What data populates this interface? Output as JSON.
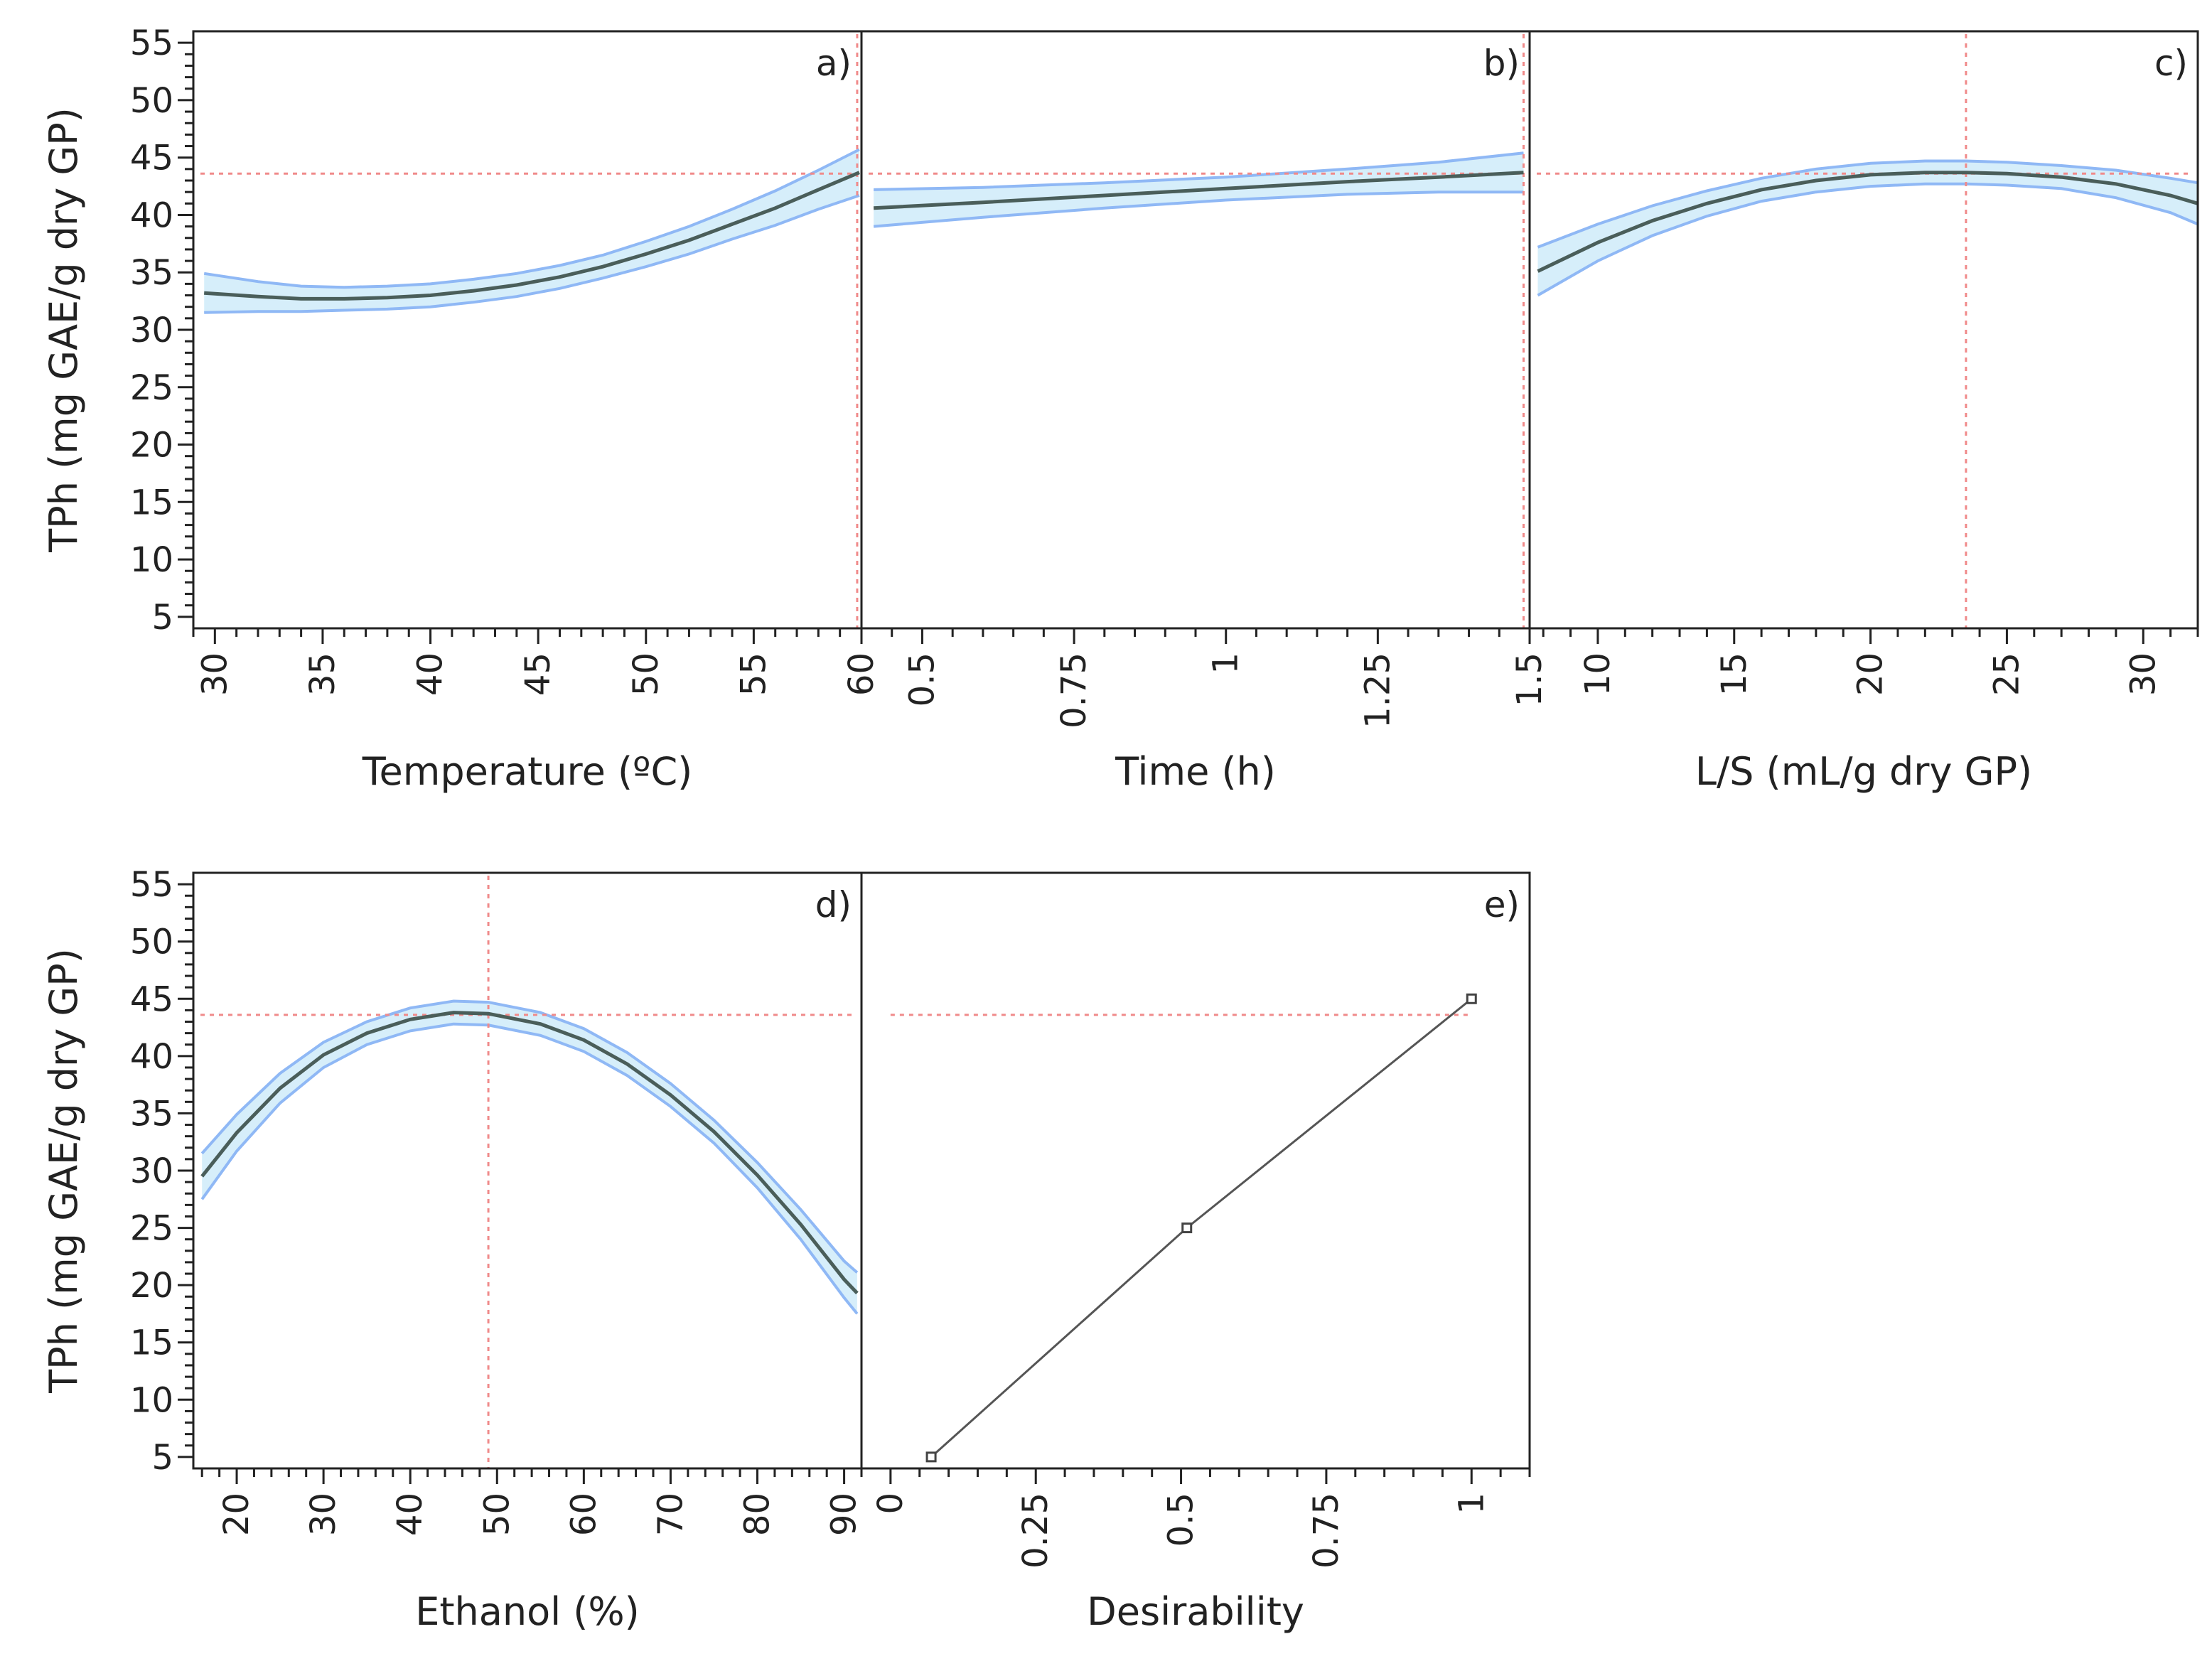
{
  "colors": {
    "curve": "#4a5e5a",
    "band_fill": "#d6eefa",
    "band_edge": "#8fb8f5",
    "ref_line": "#f08a8a",
    "frame": "#222222",
    "tick_label": "#222222"
  },
  "chart_data": [
    {
      "type": "line",
      "panel": "a)",
      "xlabel": "Temperature (ºC)",
      "ylabel": "TPh (mg GAE/g dry GP)",
      "xlim": [
        29,
        60
      ],
      "ylim": [
        4,
        56
      ],
      "xticks": [
        30,
        35,
        40,
        45,
        50,
        55,
        60
      ],
      "xtick_labels": [
        "30",
        "35",
        "40",
        "45",
        "50",
        "55",
        "60"
      ],
      "yticks": [
        5,
        10,
        15,
        20,
        25,
        30,
        35,
        40,
        45,
        50,
        55
      ],
      "ytick_labels": [
        "5",
        "10",
        "15",
        "20",
        "25",
        "30",
        "35",
        "40",
        "45",
        "50",
        "55"
      ],
      "x": [
        29.5,
        32,
        34,
        36,
        38,
        40,
        42,
        44,
        46,
        48,
        50,
        52,
        54,
        56,
        58,
        59.9
      ],
      "y": [
        33.2,
        32.9,
        32.7,
        32.7,
        32.8,
        33.0,
        33.4,
        33.9,
        34.6,
        35.5,
        36.6,
        37.8,
        39.2,
        40.6,
        42.2,
        43.7
      ],
      "band_halfwidth": [
        1.7,
        1.3,
        1.1,
        1.0,
        1.0,
        1.0,
        1.0,
        1.0,
        1.0,
        1.0,
        1.1,
        1.2,
        1.3,
        1.5,
        1.7,
        2.0
      ],
      "ref_x": 59.8,
      "ref_y": 43.6
    },
    {
      "type": "line",
      "panel": "b)",
      "xlabel": "Time (h)",
      "xlim": [
        0.4,
        1.5
      ],
      "ylim": [
        4,
        56
      ],
      "xticks": [
        0.5,
        0.75,
        1,
        1.25,
        1.5
      ],
      "xtick_labels": [
        "0.5",
        "0.75",
        "1",
        "1.25",
        "1.5"
      ],
      "x": [
        0.42,
        0.6,
        0.8,
        1.0,
        1.2,
        1.35,
        1.49
      ],
      "y": [
        40.6,
        41.1,
        41.7,
        42.3,
        42.9,
        43.3,
        43.7
      ],
      "band_halfwidth": [
        1.6,
        1.3,
        1.1,
        1.0,
        1.1,
        1.3,
        1.7
      ],
      "ref_x": 1.49,
      "ref_y": 43.6
    },
    {
      "type": "line",
      "panel": "c)",
      "xlabel": "L/S (mL/g dry GP)",
      "xlim": [
        7.5,
        32
      ],
      "ylim": [
        4,
        56
      ],
      "xticks": [
        10,
        15,
        20,
        25,
        30
      ],
      "xtick_labels": [
        "10",
        "15",
        "20",
        "25",
        "30"
      ],
      "x": [
        7.8,
        10,
        12,
        14,
        16,
        18,
        20,
        22,
        23.5,
        25,
        27,
        29,
        31,
        32
      ],
      "y": [
        35.1,
        37.6,
        39.5,
        41.0,
        42.2,
        43.0,
        43.5,
        43.7,
        43.7,
        43.6,
        43.3,
        42.7,
        41.7,
        41.0
      ],
      "band_halfwidth": [
        2.1,
        1.6,
        1.3,
        1.1,
        1.0,
        1.0,
        1.0,
        1.0,
        1.0,
        1.0,
        1.0,
        1.2,
        1.5,
        1.8
      ],
      "ref_x": 23.5,
      "ref_y": 43.6
    },
    {
      "type": "line",
      "panel": "d)",
      "xlabel": "Ethanol (%)",
      "ylabel": "TPh (mg GAE/g dry GP)",
      "xlim": [
        15,
        92
      ],
      "ylim": [
        4,
        56
      ],
      "xticks": [
        20,
        30,
        40,
        50,
        60,
        70,
        80,
        90
      ],
      "xtick_labels": [
        "20",
        "30",
        "40",
        "50",
        "60",
        "70",
        "80",
        "90"
      ],
      "yticks": [
        5,
        10,
        15,
        20,
        25,
        30,
        35,
        40,
        45,
        50,
        55
      ],
      "ytick_labels": [
        "5",
        "10",
        "15",
        "20",
        "25",
        "30",
        "35",
        "40",
        "45",
        "50",
        "55"
      ],
      "x": [
        16,
        20,
        25,
        30,
        35,
        40,
        45,
        49,
        55,
        60,
        65,
        70,
        75,
        80,
        85,
        90,
        91.5
      ],
      "y": [
        29.5,
        33.3,
        37.2,
        40.1,
        42.0,
        43.2,
        43.8,
        43.7,
        42.8,
        41.4,
        39.3,
        36.6,
        33.4,
        29.6,
        25.3,
        20.5,
        19.3
      ],
      "band_halfwidth": [
        2.0,
        1.6,
        1.3,
        1.1,
        1.0,
        1.0,
        1.0,
        1.0,
        1.0,
        1.0,
        1.0,
        1.0,
        1.0,
        1.1,
        1.3,
        1.6,
        1.8
      ],
      "ref_x": 49,
      "ref_y": 43.6
    },
    {
      "type": "line",
      "panel": "e)",
      "xlabel": "Desirability",
      "xlim": [
        -0.05,
        1.1
      ],
      "ylim": [
        4,
        56
      ],
      "xticks": [
        0,
        0.25,
        0.5,
        0.75,
        1
      ],
      "xtick_labels": [
        "0",
        "0.25",
        "0.5",
        "0.75",
        "1"
      ],
      "x": [
        0.07,
        0.51,
        1.0
      ],
      "y": [
        5,
        25,
        45
      ],
      "ref_y": 43.6,
      "ref_x_range": [
        0.0,
        1.0
      ]
    }
  ]
}
